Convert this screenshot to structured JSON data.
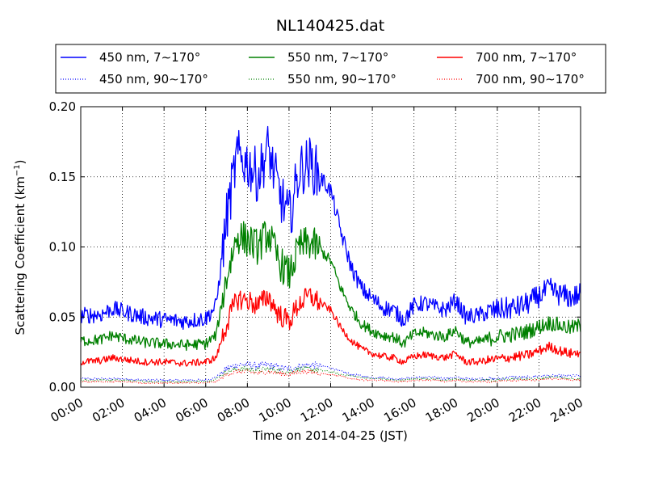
{
  "chart_data": {
    "type": "line",
    "title": "NL140425.dat",
    "xlabel": "Time on 2014-04-25 (JST)",
    "ylabel": "Scattering Coefficient (km",
    "ylabel_sup": "−1",
    "ylabel_close": ")",
    "xlim_hours": [
      0,
      24
    ],
    "ylim": [
      0.0,
      0.2
    ],
    "grid": true,
    "legend_position": "top",
    "x_ticks": [
      {
        "hour": 0,
        "label": "00:00"
      },
      {
        "hour": 2,
        "label": "02:00"
      },
      {
        "hour": 4,
        "label": "04:00"
      },
      {
        "hour": 6,
        "label": "06:00"
      },
      {
        "hour": 8,
        "label": "08:00"
      },
      {
        "hour": 10,
        "label": "10:00"
      },
      {
        "hour": 12,
        "label": "12:00"
      },
      {
        "hour": 14,
        "label": "14:00"
      },
      {
        "hour": 16,
        "label": "16:00"
      },
      {
        "hour": 18,
        "label": "18:00"
      },
      {
        "hour": 20,
        "label": "20:00"
      },
      {
        "hour": 22,
        "label": "22:00"
      },
      {
        "hour": 24,
        "label": "24:00"
      }
    ],
    "y_ticks": [
      {
        "value": 0.0,
        "label": "0.00"
      },
      {
        "value": 0.05,
        "label": "0.05"
      },
      {
        "value": 0.1,
        "label": "0.10"
      },
      {
        "value": 0.15,
        "label": "0.15"
      },
      {
        "value": 0.2,
        "label": "0.20"
      }
    ],
    "x_hours": [
      0,
      1,
      1.5,
      2,
      3,
      4,
      5,
      6,
      6.5,
      7,
      7.5,
      8,
      8.5,
      9,
      9.5,
      10,
      10.5,
      11,
      11.5,
      12,
      12.5,
      13,
      13.5,
      14,
      14.5,
      15,
      15.5,
      16,
      16.5,
      17,
      17.5,
      18,
      18.5,
      19,
      19.5,
      20,
      20.5,
      21,
      21.5,
      22,
      22.5,
      23,
      23.5,
      24
    ],
    "series": [
      {
        "name": "450 nm, 7∼170°",
        "color": "#0000ff",
        "style": "solid",
        "noise": 0.006,
        "values": [
          0.051,
          0.052,
          0.056,
          0.054,
          0.05,
          0.048,
          0.047,
          0.049,
          0.058,
          0.12,
          0.165,
          0.16,
          0.15,
          0.17,
          0.14,
          0.12,
          0.155,
          0.16,
          0.15,
          0.14,
          0.11,
          0.085,
          0.07,
          0.063,
          0.057,
          0.055,
          0.048,
          0.058,
          0.06,
          0.057,
          0.055,
          0.062,
          0.05,
          0.051,
          0.053,
          0.055,
          0.056,
          0.057,
          0.06,
          0.065,
          0.07,
          0.066,
          0.064,
          0.066
        ]
      },
      {
        "name": "550 nm, 7∼170°",
        "color": "#008000",
        "style": "solid",
        "noise": 0.004,
        "values": [
          0.033,
          0.034,
          0.037,
          0.035,
          0.032,
          0.031,
          0.03,
          0.031,
          0.037,
          0.078,
          0.108,
          0.105,
          0.1,
          0.11,
          0.09,
          0.08,
          0.1,
          0.103,
          0.098,
          0.09,
          0.07,
          0.055,
          0.045,
          0.04,
          0.037,
          0.036,
          0.031,
          0.038,
          0.039,
          0.037,
          0.036,
          0.041,
          0.032,
          0.032,
          0.034,
          0.036,
          0.037,
          0.038,
          0.04,
          0.043,
          0.046,
          0.044,
          0.042,
          0.044
        ]
      },
      {
        "name": "700 nm, 7∼170°",
        "color": "#ff0000",
        "style": "solid",
        "noise": 0.0025,
        "values": [
          0.018,
          0.019,
          0.021,
          0.02,
          0.018,
          0.018,
          0.017,
          0.018,
          0.021,
          0.045,
          0.063,
          0.062,
          0.058,
          0.065,
          0.052,
          0.047,
          0.06,
          0.065,
          0.06,
          0.055,
          0.042,
          0.033,
          0.027,
          0.024,
          0.022,
          0.021,
          0.018,
          0.022,
          0.023,
          0.022,
          0.021,
          0.024,
          0.018,
          0.018,
          0.019,
          0.02,
          0.021,
          0.022,
          0.023,
          0.026,
          0.029,
          0.026,
          0.024,
          0.025
        ]
      },
      {
        "name": "450 nm, 90∼170°",
        "color": "#0000ff",
        "style": "dotted",
        "noise": 0.0008,
        "values": [
          0.006,
          0.006,
          0.006,
          0.006,
          0.005,
          0.005,
          0.005,
          0.005,
          0.007,
          0.013,
          0.016,
          0.016,
          0.015,
          0.016,
          0.014,
          0.013,
          0.015,
          0.016,
          0.015,
          0.014,
          0.011,
          0.009,
          0.008,
          0.007,
          0.007,
          0.006,
          0.006,
          0.007,
          0.007,
          0.007,
          0.006,
          0.007,
          0.006,
          0.006,
          0.006,
          0.006,
          0.007,
          0.007,
          0.007,
          0.008,
          0.008,
          0.008,
          0.008,
          0.008
        ]
      },
      {
        "name": "550 nm, 90∼170°",
        "color": "#008000",
        "style": "dotted",
        "noise": 0.0006,
        "values": [
          0.005,
          0.005,
          0.005,
          0.005,
          0.004,
          0.004,
          0.004,
          0.004,
          0.006,
          0.011,
          0.013,
          0.013,
          0.012,
          0.013,
          0.012,
          0.011,
          0.013,
          0.013,
          0.012,
          0.011,
          0.009,
          0.008,
          0.007,
          0.006,
          0.006,
          0.005,
          0.005,
          0.006,
          0.006,
          0.006,
          0.005,
          0.006,
          0.005,
          0.005,
          0.005,
          0.005,
          0.006,
          0.006,
          0.006,
          0.006,
          0.007,
          0.007,
          0.006,
          0.006
        ]
      },
      {
        "name": "700 nm, 90∼170°",
        "color": "#ff0000",
        "style": "dotted",
        "noise": 0.0005,
        "values": [
          0.004,
          0.004,
          0.004,
          0.004,
          0.003,
          0.003,
          0.003,
          0.003,
          0.004,
          0.009,
          0.011,
          0.011,
          0.01,
          0.011,
          0.01,
          0.009,
          0.011,
          0.011,
          0.01,
          0.009,
          0.008,
          0.006,
          0.005,
          0.005,
          0.005,
          0.004,
          0.004,
          0.005,
          0.005,
          0.005,
          0.004,
          0.005,
          0.004,
          0.004,
          0.004,
          0.004,
          0.005,
          0.005,
          0.005,
          0.005,
          0.006,
          0.006,
          0.005,
          0.005
        ]
      }
    ]
  }
}
